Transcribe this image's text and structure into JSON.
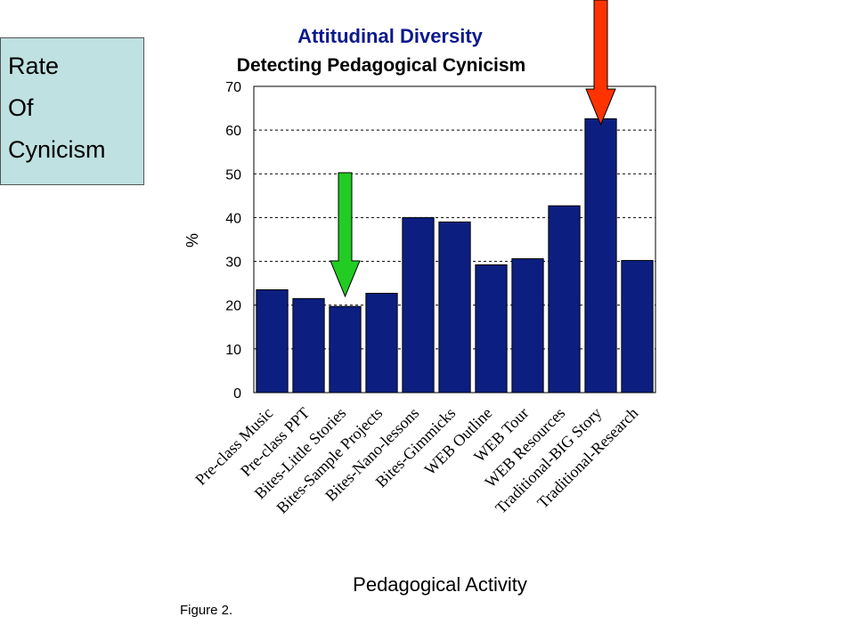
{
  "side_panel": {
    "lines": [
      "Rate",
      "Of",
      "Cynicism"
    ],
    "background": "#bfe1e1"
  },
  "caption": "Figure 2.",
  "chart_data": {
    "type": "bar",
    "title": "Attitudinal Diversity",
    "subtitle": "Detecting Pedagogical Cynicism",
    "xlabel": "Pedagogical Activity",
    "ylabel": "%",
    "ylim": [
      0,
      70
    ],
    "yticks": [
      0,
      10,
      20,
      30,
      40,
      50,
      60,
      70
    ],
    "grid": "dashed horizontal",
    "legend": "none",
    "categories": [
      "Pre-class Music",
      "Pre-class PPT",
      "Bites-Little Stories",
      "Bites-Sample Projects",
      "Bites-Nano-lessons",
      "Bites-Gimmicks",
      "WEB Outline",
      "WEB Tour",
      "WEB Resources",
      "Traditional-BIG Story",
      "Traditional-Research"
    ],
    "values": [
      23.5,
      21.5,
      19.7,
      22.7,
      40,
      39,
      29.2,
      30.6,
      42.7,
      62.6,
      30.2
    ],
    "bar_color": "#0c1f80",
    "title_color": "#0d1a8c",
    "annotations": [
      {
        "type": "arrow-down",
        "color": "#22cc22",
        "points_to": "Bites-Little Stories"
      },
      {
        "type": "arrow-down",
        "color": "#ff3300",
        "points_to": "Traditional-BIG Story"
      }
    ]
  }
}
